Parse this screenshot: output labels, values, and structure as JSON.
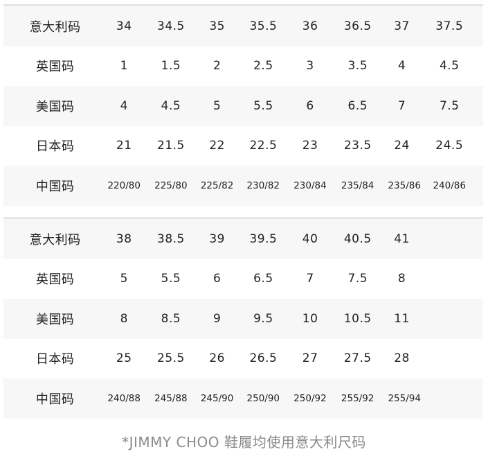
{
  "tables": [
    {
      "rows": [
        {
          "label": "意大利码",
          "values": [
            "34",
            "34.5",
            "35",
            "35.5",
            "36",
            "36.5",
            "37",
            "37.5"
          ]
        },
        {
          "label": "英国码",
          "values": [
            "1",
            "1.5",
            "2",
            "2.5",
            "3",
            "3.5",
            "4",
            "4.5"
          ]
        },
        {
          "label": "美国码",
          "values": [
            "4",
            "4.5",
            "5",
            "5.5",
            "6",
            "6.5",
            "7",
            "7.5"
          ]
        },
        {
          "label": "日本码",
          "values": [
            "21",
            "21.5",
            "22",
            "22.5",
            "23",
            "23.5",
            "24",
            "24.5"
          ]
        },
        {
          "label": "中国码",
          "values": [
            "220/80",
            "225/80",
            "225/82",
            "230/82",
            "230/84",
            "235/84",
            "235/86",
            "240/86"
          ]
        }
      ]
    },
    {
      "rows": [
        {
          "label": "意大利码",
          "values": [
            "38",
            "38.5",
            "39",
            "39.5",
            "40",
            "40.5",
            "41",
            ""
          ]
        },
        {
          "label": "英国码",
          "values": [
            "5",
            "5.5",
            "6",
            "6.5",
            "7",
            "7.5",
            "8",
            ""
          ]
        },
        {
          "label": "美国码",
          "values": [
            "8",
            "8.5",
            "9",
            "9.5",
            "10",
            "10.5",
            "11",
            ""
          ]
        },
        {
          "label": "日本码",
          "values": [
            "25",
            "25.5",
            "26",
            "26.5",
            "27",
            "27.5",
            "28",
            ""
          ]
        },
        {
          "label": "中国码",
          "values": [
            "240/88",
            "245/88",
            "245/90",
            "250/90",
            "250/92",
            "255/92",
            "255/94",
            ""
          ]
        }
      ]
    }
  ],
  "footer_note": "*JIMMY CHOO 鞋履均使用意大利尺码"
}
